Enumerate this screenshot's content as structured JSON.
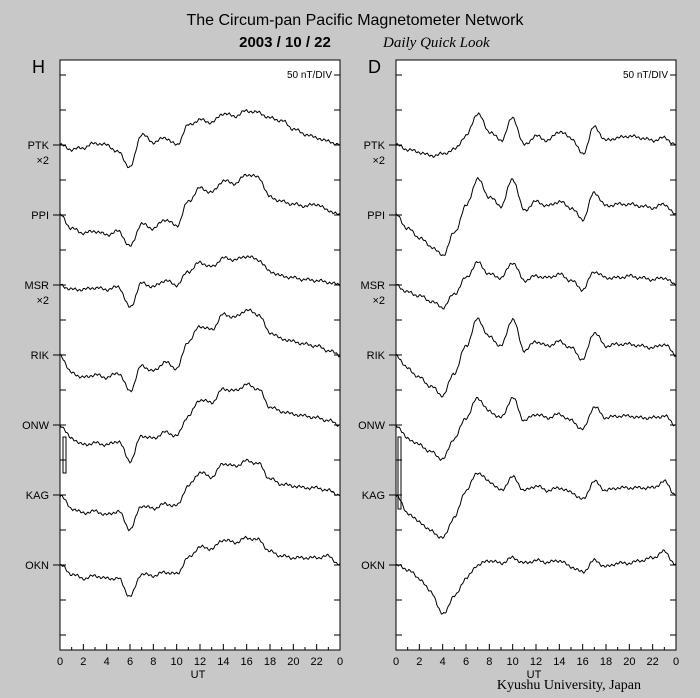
{
  "title": "The Circum-pan Pacific Magnetometer Network",
  "date": "2003 / 10 / 22",
  "subtitle": "Daily Quick Look",
  "footer": "Kyushu University, Japan",
  "colors": {
    "background": "#c8c8c8",
    "panel": "#ffffff",
    "trace": "#000000"
  },
  "chart_data": [
    {
      "type": "line",
      "panel_label": "H",
      "scale_label": "50 nT/DIV",
      "xlabel": "UT",
      "x_ticks": [
        "0",
        "2",
        "4",
        "6",
        "8",
        "10",
        "12",
        "14",
        "16",
        "18",
        "20",
        "22",
        "0"
      ],
      "xlim": [
        0,
        24
      ],
      "grid": false,
      "stations": [
        {
          "name": "PTK",
          "multiplier": "×2",
          "values": [
            0,
            -5,
            -3,
            2,
            0,
            -8,
            -25,
            12,
            3,
            8,
            0,
            22,
            28,
            25,
            35,
            32,
            38,
            36,
            30,
            27,
            18,
            12,
            8,
            4,
            0
          ]
        },
        {
          "name": "PPI",
          "multiplier": "",
          "values": [
            0,
            -15,
            -20,
            -18,
            -22,
            -18,
            -35,
            -10,
            -15,
            -5,
            -12,
            15,
            30,
            25,
            38,
            35,
            45,
            42,
            20,
            15,
            12,
            10,
            12,
            5,
            0
          ]
        },
        {
          "name": "MSR",
          "multiplier": "×2",
          "values": [
            0,
            -5,
            -5,
            -3,
            -5,
            -2,
            -25,
            2,
            -2,
            5,
            0,
            15,
            25,
            20,
            30,
            28,
            32,
            28,
            15,
            10,
            8,
            6,
            5,
            3,
            0
          ]
        },
        {
          "name": "RIK",
          "multiplier": "",
          "values": [
            0,
            -20,
            -25,
            -22,
            -25,
            -20,
            -40,
            -12,
            -18,
            -8,
            -15,
            15,
            32,
            28,
            45,
            42,
            50,
            45,
            25,
            18,
            15,
            12,
            10,
            5,
            0
          ]
        },
        {
          "name": "ONW",
          "multiplier": "",
          "values": [
            0,
            -15,
            -22,
            -20,
            -22,
            -18,
            -40,
            -12,
            -15,
            -8,
            -12,
            10,
            28,
            25,
            40,
            38,
            45,
            40,
            20,
            15,
            12,
            10,
            8,
            5,
            0
          ]
        },
        {
          "name": "KAG",
          "multiplier": "",
          "values": [
            0,
            -15,
            -20,
            -18,
            -22,
            -18,
            -38,
            -12,
            -15,
            -10,
            -12,
            10,
            25,
            20,
            35,
            32,
            38,
            35,
            18,
            12,
            10,
            8,
            8,
            5,
            0
          ]
        },
        {
          "name": "OKN",
          "multiplier": "",
          "values": [
            0,
            -10,
            -15,
            -12,
            -15,
            -15,
            -35,
            -10,
            -12,
            -8,
            -10,
            8,
            20,
            18,
            28,
            25,
            30,
            28,
            15,
            10,
            8,
            8,
            8,
            10,
            0
          ]
        }
      ]
    },
    {
      "type": "line",
      "panel_label": "D",
      "scale_label": "50 nT/DIV",
      "xlabel": "UT",
      "x_ticks": [
        "0",
        "2",
        "4",
        "6",
        "8",
        "10",
        "12",
        "14",
        "16",
        "18",
        "20",
        "22",
        "0"
      ],
      "xlim": [
        0,
        24
      ],
      "grid": false,
      "stations": [
        {
          "name": "PTK",
          "multiplier": "×2",
          "values": [
            0,
            -5,
            -8,
            -12,
            -10,
            -5,
            10,
            35,
            15,
            5,
            30,
            0,
            10,
            5,
            15,
            8,
            -10,
            20,
            5,
            8,
            10,
            8,
            5,
            8,
            0
          ]
        },
        {
          "name": "PPI",
          "multiplier": "",
          "values": [
            0,
            -15,
            -25,
            -35,
            -45,
            -20,
            10,
            40,
            20,
            10,
            40,
            5,
            15,
            10,
            15,
            8,
            -5,
            25,
            10,
            12,
            12,
            10,
            8,
            12,
            0
          ]
        },
        {
          "name": "MSR",
          "multiplier": "×2",
          "values": [
            0,
            -8,
            -12,
            -18,
            -25,
            -10,
            8,
            25,
            12,
            8,
            25,
            5,
            10,
            8,
            12,
            5,
            -5,
            15,
            8,
            8,
            10,
            8,
            6,
            8,
            0
          ]
        },
        {
          "name": "RIK",
          "multiplier": "",
          "values": [
            0,
            -15,
            -25,
            -35,
            -45,
            -20,
            10,
            40,
            20,
            10,
            40,
            5,
            15,
            10,
            15,
            8,
            -5,
            25,
            10,
            12,
            12,
            10,
            8,
            12,
            0
          ]
        },
        {
          "name": "ONW",
          "multiplier": "",
          "values": [
            0,
            -15,
            -22,
            -30,
            -38,
            -15,
            8,
            30,
            15,
            8,
            30,
            5,
            12,
            8,
            12,
            5,
            -5,
            20,
            8,
            10,
            10,
            8,
            8,
            10,
            0
          ]
        },
        {
          "name": "KAG",
          "multiplier": "",
          "values": [
            0,
            -20,
            -30,
            -40,
            -48,
            -25,
            5,
            25,
            15,
            5,
            20,
            5,
            10,
            5,
            8,
            3,
            -5,
            15,
            5,
            8,
            8,
            8,
            8,
            15,
            0
          ]
        },
        {
          "name": "OKN",
          "multiplier": "",
          "values": [
            0,
            -5,
            -15,
            -30,
            -55,
            -35,
            -15,
            0,
            5,
            2,
            8,
            2,
            5,
            3,
            5,
            -2,
            -8,
            5,
            -2,
            2,
            2,
            5,
            8,
            15,
            0
          ]
        }
      ]
    }
  ]
}
